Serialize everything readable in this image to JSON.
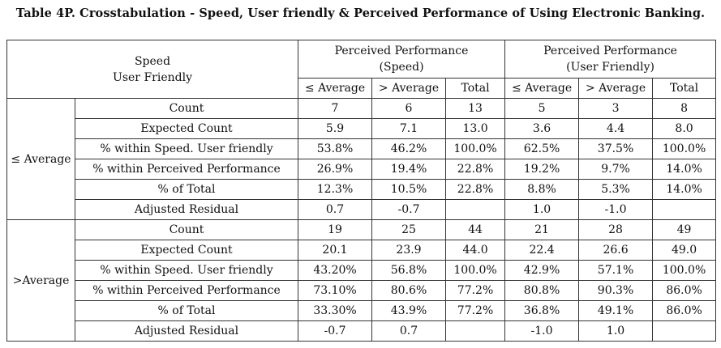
{
  "caption": "Table 4P. Crosstabulation - Speed, User friendly & Perceived Performance of Using Electronic Banking.",
  "corner": {
    "line1": "Speed",
    "line2": "User Friendly"
  },
  "groups": [
    {
      "line1": "Perceived Performance",
      "line2": "(Speed)"
    },
    {
      "line1": "Perceived Performance",
      "line2": "(User Friendly)"
    }
  ],
  "subheaders": [
    "≤ Average",
    "> Average",
    "Total",
    "≤ Average",
    "> Average",
    "Total"
  ],
  "blocks": [
    {
      "label": "≤ Average",
      "rows": [
        {
          "label": "Count",
          "values": [
            "7",
            "6",
            "13",
            "5",
            "3",
            "8"
          ]
        },
        {
          "label": "Expected Count",
          "values": [
            "5.9",
            "7.1",
            "13.0",
            "3.6",
            "4.4",
            "8.0"
          ]
        },
        {
          "label": "% within Speed. User friendly",
          "values": [
            "53.8%",
            "46.2%",
            "100.0%",
            "62.5%",
            "37.5%",
            "100.0%"
          ]
        },
        {
          "label": "% within Perceived Performance",
          "values": [
            "26.9%",
            "19.4%",
            "22.8%",
            "19.2%",
            "9.7%",
            "14.0%"
          ]
        },
        {
          "label": "% of Total",
          "values": [
            "12.3%",
            "10.5%",
            "22.8%",
            "8.8%",
            "5.3%",
            "14.0%"
          ]
        },
        {
          "label": "Adjusted Residual",
          "values": [
            "0.7",
            "-0.7",
            "",
            "1.0",
            "-1.0",
            ""
          ]
        }
      ]
    },
    {
      "label": ">Average",
      "rows": [
        {
          "label": "Count",
          "values": [
            "19",
            "25",
            "44",
            "21",
            "28",
            "49"
          ]
        },
        {
          "label": "Expected Count",
          "values": [
            "20.1",
            "23.9",
            "44.0",
            "22.4",
            "26.6",
            "49.0"
          ]
        },
        {
          "label": "% within Speed. User friendly",
          "values": [
            "43.20%",
            "56.8%",
            "100.0%",
            "42.9%",
            "57.1%",
            "100.0%"
          ]
        },
        {
          "label": "% within Perceived Performance",
          "values": [
            "73.10%",
            "80.6%",
            "77.2%",
            "80.8%",
            "90.3%",
            "86.0%"
          ]
        },
        {
          "label": "% of Total",
          "values": [
            "33.30%",
            "43.9%",
            "77.2%",
            "36.8%",
            "49.1%",
            "86.0%"
          ]
        },
        {
          "label": "Adjusted Residual",
          "values": [
            "-0.7",
            "0.7",
            "",
            "-1.0",
            "1.0",
            ""
          ]
        }
      ]
    }
  ]
}
